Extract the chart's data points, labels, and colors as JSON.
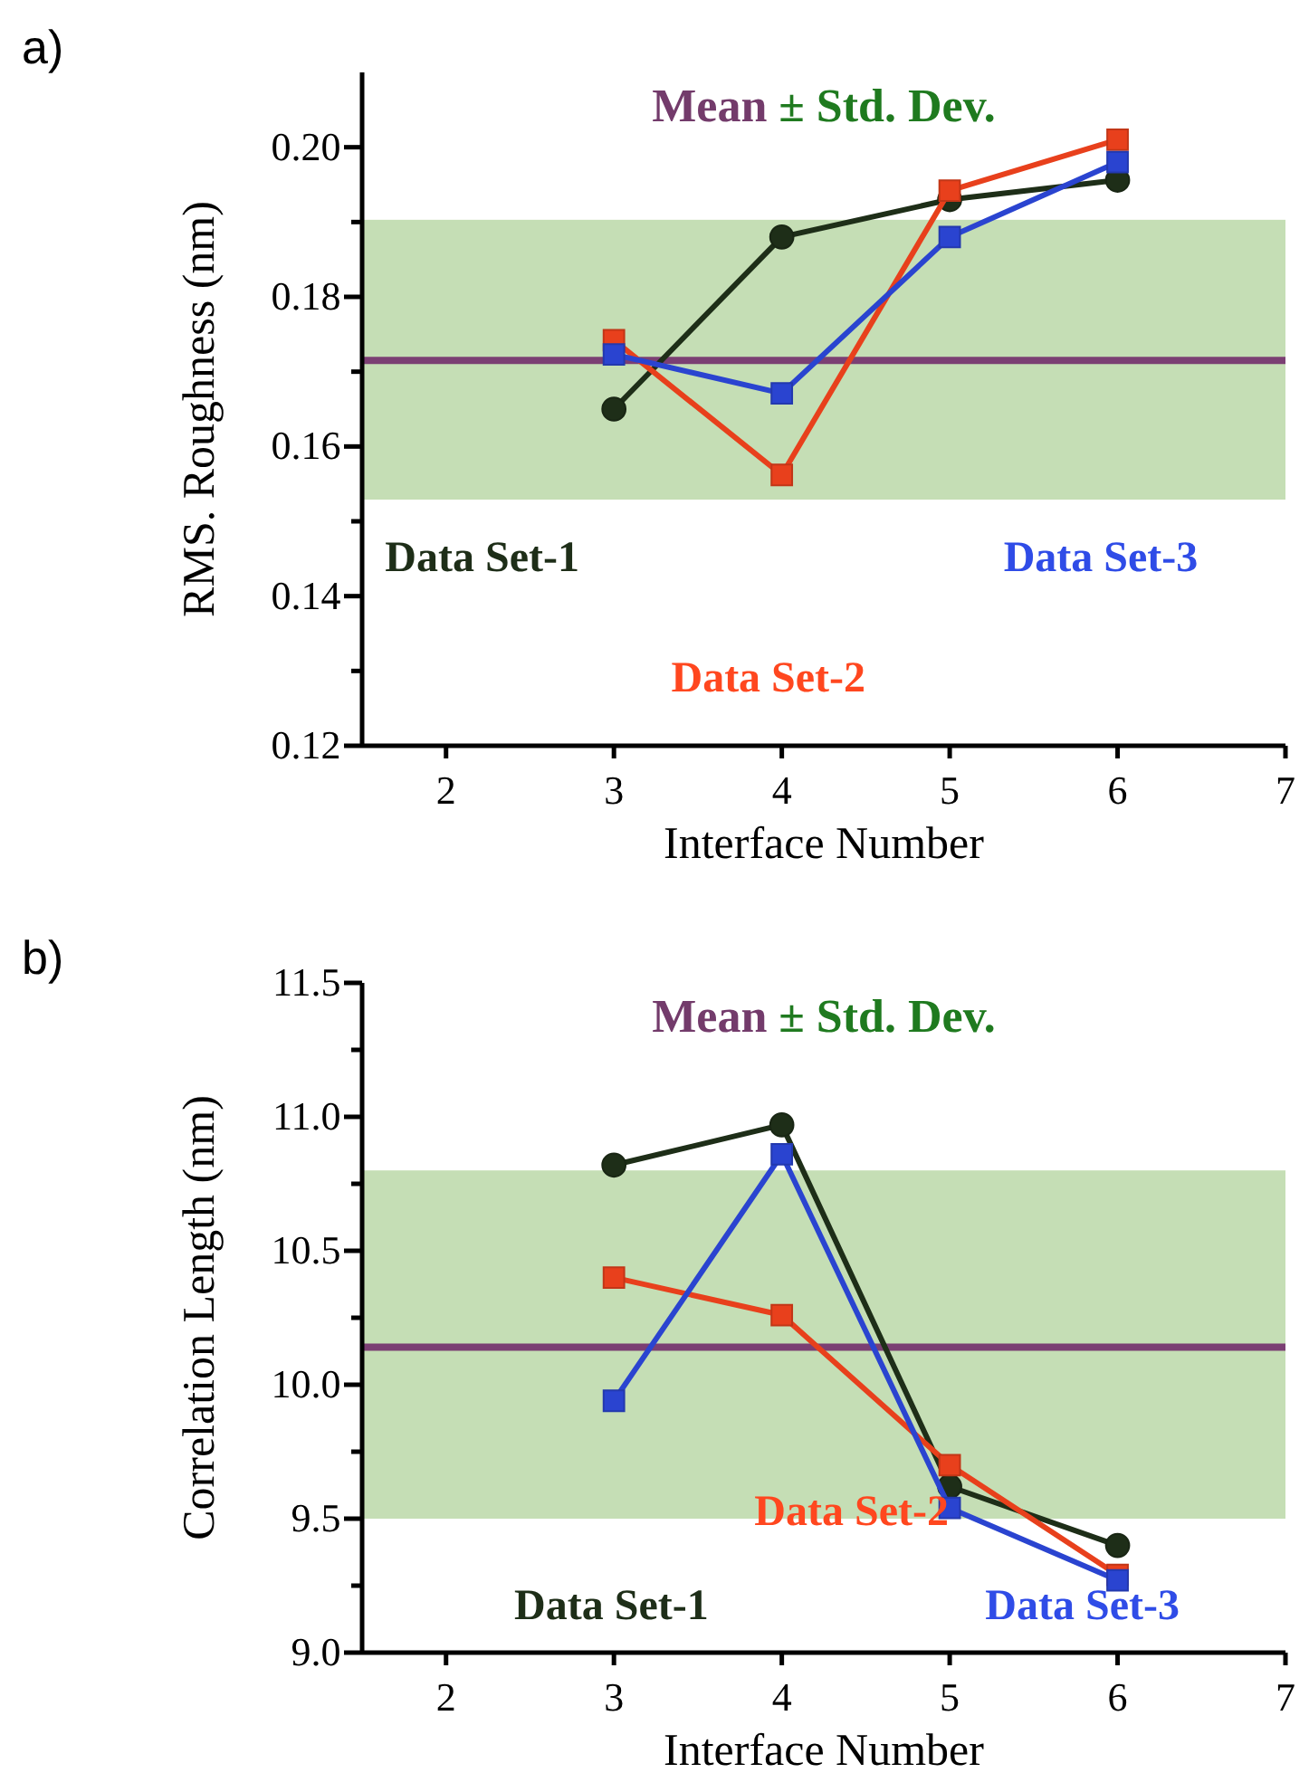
{
  "chart_data": [
    {
      "type": "line",
      "xlabel": "Interface Number",
      "ylabel": "RMS. Roughness (nm)",
      "annotations": [
        "a)"
      ],
      "x": [
        3,
        4,
        5,
        6
      ],
      "xlim": [
        1.5,
        7
      ],
      "xticks": [
        2,
        3,
        4,
        5,
        6,
        7
      ],
      "ylim": [
        0.12,
        0.21
      ],
      "yticks": [
        {
          "value": 0.12,
          "label": "0.12"
        },
        {
          "value": 0.13,
          "label": null
        },
        {
          "value": 0.14,
          "label": "0.14"
        },
        {
          "value": 0.15,
          "label": null
        },
        {
          "value": 0.16,
          "label": "0.16"
        },
        {
          "value": 0.17,
          "label": null
        },
        {
          "value": 0.18,
          "label": "0.18"
        },
        {
          "value": 0.19,
          "label": null
        },
        {
          "value": 0.2,
          "label": "0.20"
        }
      ],
      "series": [
        {
          "name": "Data Set-1",
          "color": "#1e2e18",
          "marker": "circle",
          "values": [
            0.165,
            0.188,
            0.193,
            0.1956
          ]
        },
        {
          "name": "Data Set-2",
          "color": "#e8401c",
          "marker": "square",
          "values": [
            0.1742,
            0.1562,
            0.1942,
            0.201
          ]
        },
        {
          "name": "Data Set-3",
          "color": "#2a44d0",
          "marker": "square",
          "values": [
            0.1723,
            0.1671,
            0.188,
            0.198
          ]
        }
      ],
      "ref_lines": [
        {
          "axis": "y",
          "value": 0.1715,
          "label": "Mean",
          "color": "#7b3f73"
        }
      ],
      "bands": [
        {
          "axis": "y",
          "from": 0.1529,
          "to": 0.1903,
          "label": "± Std. Dev.",
          "color": "#c5deb5"
        }
      ],
      "grid": false
    },
    {
      "type": "line",
      "xlabel": "Interface Number",
      "ylabel": "Correlation Length (nm)",
      "annotations": [
        "b)"
      ],
      "x": [
        3,
        4,
        5,
        6
      ],
      "xlim": [
        1.5,
        7
      ],
      "xticks": [
        2,
        3,
        4,
        5,
        6,
        7
      ],
      "ylim": [
        9.0,
        11.5
      ],
      "yticks": [
        {
          "value": 9.0,
          "label": "9.0"
        },
        {
          "value": 9.25,
          "label": null
        },
        {
          "value": 9.5,
          "label": "9.5"
        },
        {
          "value": 9.75,
          "label": null
        },
        {
          "value": 10.0,
          "label": "10.0"
        },
        {
          "value": 10.25,
          "label": null
        },
        {
          "value": 10.5,
          "label": "10.5"
        },
        {
          "value": 10.75,
          "label": null
        },
        {
          "value": 11.0,
          "label": "11.0"
        },
        {
          "value": 11.25,
          "label": null
        },
        {
          "value": 11.5,
          "label": "11.5"
        }
      ],
      "series": [
        {
          "name": "Data Set-1",
          "color": "#1e2e18",
          "marker": "circle",
          "values": [
            10.82,
            10.97,
            9.62,
            9.4
          ]
        },
        {
          "name": "Data Set-2",
          "color": "#e8401c",
          "marker": "square",
          "values": [
            10.4,
            10.26,
            9.7,
            9.29
          ]
        },
        {
          "name": "Data Set-3",
          "color": "#2a44d0",
          "marker": "square",
          "values": [
            9.94,
            10.86,
            9.54,
            9.27
          ]
        }
      ],
      "ref_lines": [
        {
          "axis": "y",
          "value": 10.14,
          "label": "Mean",
          "color": "#7b3f73"
        }
      ],
      "bands": [
        {
          "axis": "y",
          "from": 9.5,
          "to": 10.8,
          "label": "± Std. Dev.",
          "color": "#c5deb5"
        }
      ],
      "grid": false
    }
  ]
}
